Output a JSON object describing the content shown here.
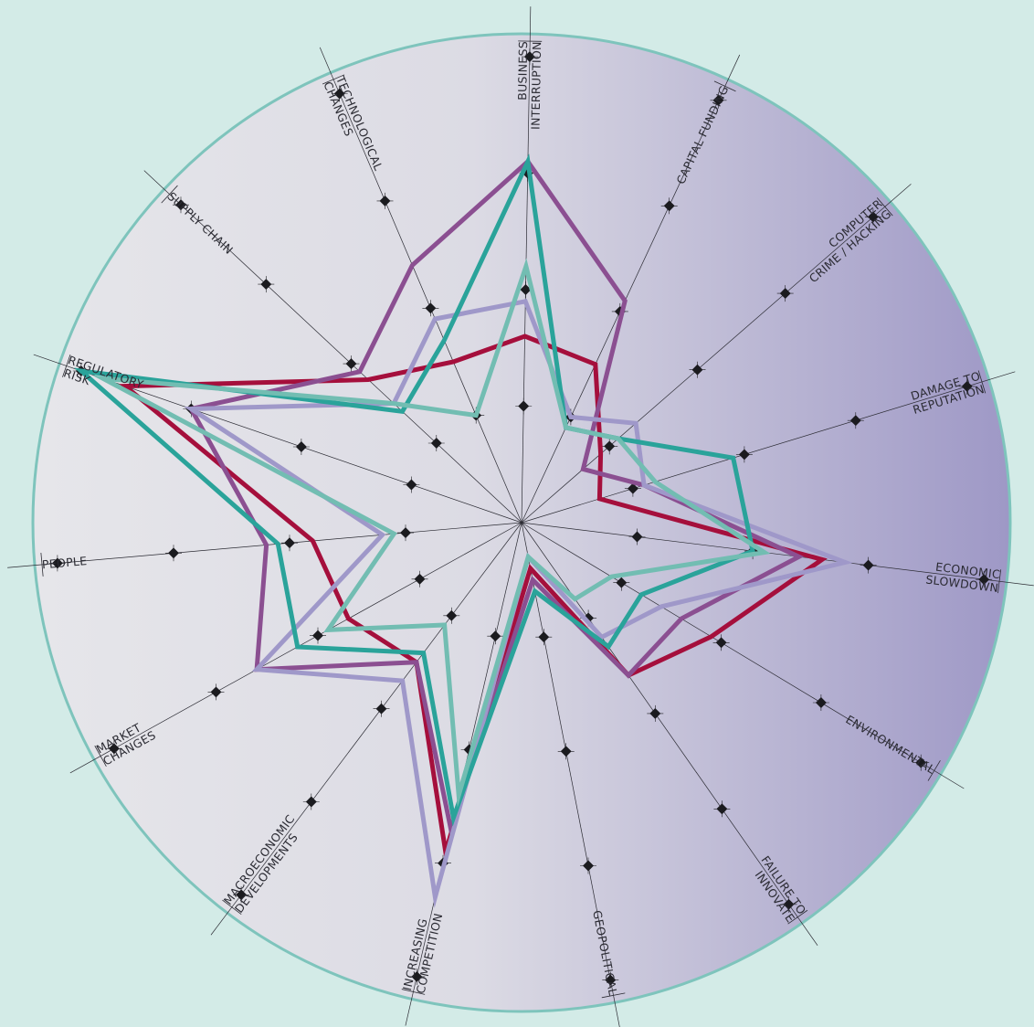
{
  "chart_data": {
    "type": "radar",
    "title": "",
    "axes": [
      [
        "BUSINESS",
        "INTERRUPTION"
      ],
      [
        "CAPITAL FUNDING"
      ],
      [
        "COMPUTER",
        "CRIME / HACKING"
      ],
      [
        "DAMAGE TO",
        "REPUTATION"
      ],
      [
        "ECONOMIC",
        "SLOWDOWN"
      ],
      [
        "ENVIRONMENTAL"
      ],
      [
        "FAILURE TO",
        "INNOVATE"
      ],
      [
        "GEOPOLITICAL"
      ],
      [
        "INCREASING",
        "COMPETITION"
      ],
      [
        "MACROECONOMIC",
        "DEVELOPMENTS"
      ],
      [
        "MARKET",
        "CHANGES"
      ],
      [
        "PEOPLE"
      ],
      [
        "REGULATORY",
        "RISK"
      ],
      [
        "SUPPLY CHAIN"
      ],
      [
        "TECHNOLOGICAL",
        "CHANGES"
      ]
    ],
    "rlim": [
      0,
      4
    ],
    "series": [
      {
        "color": "#a50f3c",
        "values": [
          1.6,
          1.5,
          0.9,
          0.7,
          2.6,
          1.9,
          1.6,
          0.4,
          2.9,
          1.5,
          1.7,
          1.8,
          3.6,
          1.8,
          1.5
        ]
      },
      {
        "color": "#8b4f91",
        "values": [
          3.1,
          2.1,
          0.7,
          1.1,
          2.4,
          1.6,
          1.6,
          0.5,
          2.7,
          1.5,
          2.6,
          2.2,
          3.0,
          1.9,
          2.4
        ]
      },
      {
        "color": "#9f98c9",
        "values": [
          1.9,
          1.0,
          1.3,
          1.1,
          2.8,
          1.4,
          1.2,
          0.3,
          3.3,
          1.7,
          2.6,
          1.2,
          3.0,
          1.5,
          1.9
        ]
      },
      {
        "color": "#2aa39a",
        "values": [
          3.1,
          0.9,
          1.1,
          1.9,
          2.0,
          1.2,
          1.3,
          0.6,
          2.6,
          1.4,
          2.2,
          2.1,
          4.0,
          1.4,
          1.7
        ]
      },
      {
        "color": "#72bdb2",
        "values": [
          2.2,
          0.9,
          1.1,
          1.2,
          2.1,
          0.9,
          0.8,
          0.3,
          2.4,
          1.1,
          1.9,
          1.1,
          3.8,
          1.5,
          1.0
        ]
      }
    ]
  },
  "colors": {
    "background": "#d3ebe7",
    "disc_left": "#e6e6ea",
    "disc_right": "#9e98c6",
    "disc_edge": "#7ec4bc",
    "axis": "#2b2b33",
    "marker": "#1b1b1f"
  }
}
